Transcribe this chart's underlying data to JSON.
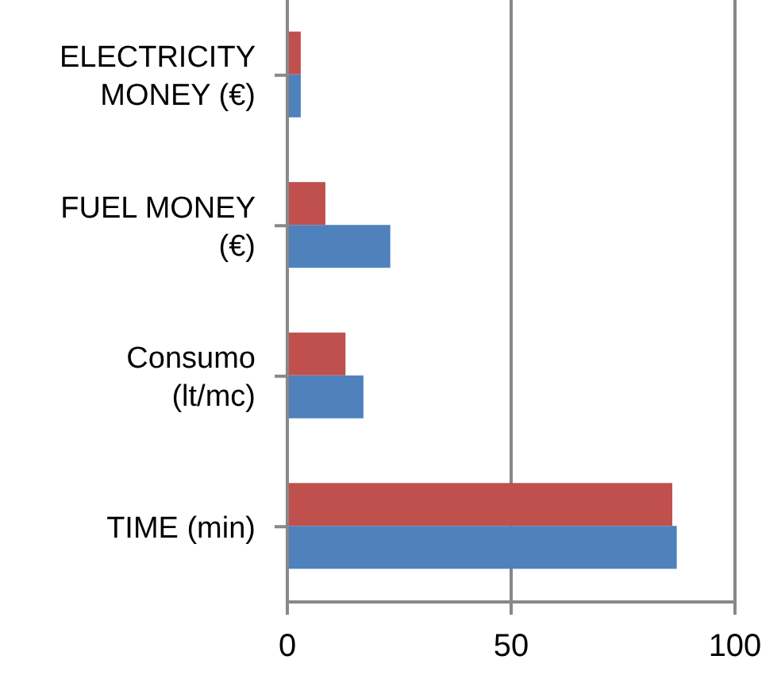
{
  "chart_data": {
    "type": "bar",
    "orientation": "horizontal",
    "categories": [
      "ELECTRICITY MONEY (€)",
      "FUEL MONEY (€)",
      "Consumo (lt/mc)",
      "TIME (min)"
    ],
    "series": [
      {
        "color": "#c0504d",
        "values": [
          3,
          8.5,
          13,
          86
        ]
      },
      {
        "color": "#4f81bd",
        "values": [
          3,
          23,
          17,
          87
        ]
      }
    ],
    "xlim": [
      0,
      100
    ],
    "xticks": [
      0,
      50,
      100
    ],
    "grid": "x",
    "legend": false
  }
}
